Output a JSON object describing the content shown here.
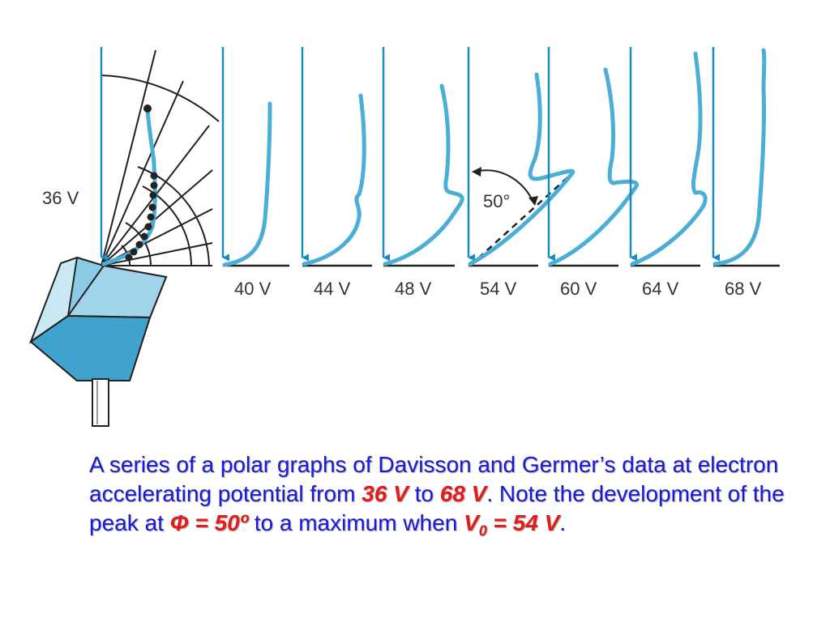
{
  "figure": {
    "start_label": "36 V",
    "angle_label": "50°",
    "voltage_labels": [
      "40 V",
      "44 V",
      "48 V",
      "54 V",
      "60 V",
      "64 V",
      "68 V"
    ]
  },
  "caption": {
    "part1": "A series of a polar graphs of Davisson and Germer’s data at electron accelerating potential from ",
    "v_start": "36 V",
    "part2": " to ",
    "v_end": "68 V",
    "part3": ". Note the development of the peak at ",
    "phi": "Φ = 50º",
    "part4": "  to a maximum when ",
    "v0_symbol": "V",
    "v0_sub": "0",
    "v0_value": " = 54 V",
    "part5": "."
  },
  "colors": {
    "curve": "#4aaed6",
    "axis_arrow": "#1b8ac2",
    "caption_text": "#1a1ad6",
    "highlight": "#e41b1b"
  }
}
